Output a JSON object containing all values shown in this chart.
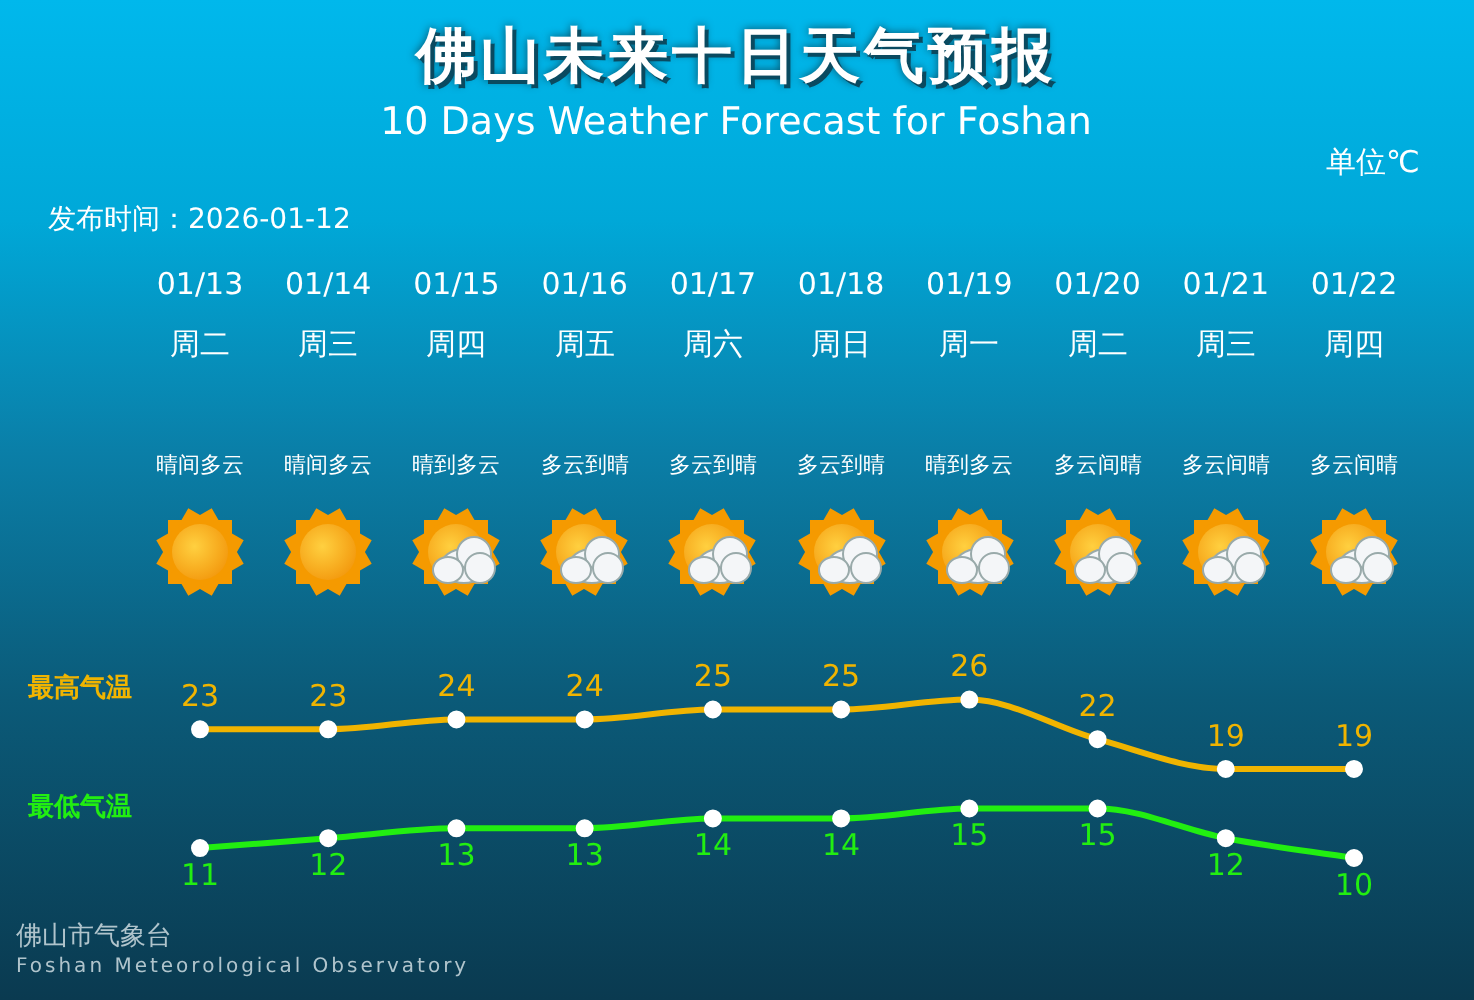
{
  "chart_data": {
    "type": "line",
    "title": "佛山未来十日天气预报",
    "subtitle": "10 Days Weather Forecast for Foshan",
    "categories": [
      "01/13",
      "01/14",
      "01/15",
      "01/16",
      "01/17",
      "01/18",
      "01/19",
      "01/20",
      "01/21",
      "01/22"
    ],
    "series": [
      {
        "name": "最高气温",
        "color": "#f0b400",
        "values": [
          23,
          23,
          24,
          24,
          25,
          25,
          26,
          22,
          19,
          19
        ]
      },
      {
        "name": "最低气温",
        "color": "#22ee11",
        "values": [
          11,
          12,
          13,
          13,
          14,
          14,
          15,
          15,
          12,
          10
        ]
      }
    ],
    "annotations": [
      "周二",
      "周三",
      "周四",
      "周五",
      "周六",
      "周日",
      "周一",
      "周二",
      "周三",
      "周四",
      "晴间多云",
      "晴间多云",
      "晴到多云",
      "多云到晴",
      "多云到晴",
      "多云到晴",
      "晴到多云",
      "多云间晴",
      "多云间晴",
      "多云间晴",
      "发布时间：2026-01-12",
      "单位℃",
      "佛山市气象台",
      "Foshan Meteorological Observatory"
    ],
    "data_labels": true,
    "marker": "circle",
    "legend": false
  }
}
